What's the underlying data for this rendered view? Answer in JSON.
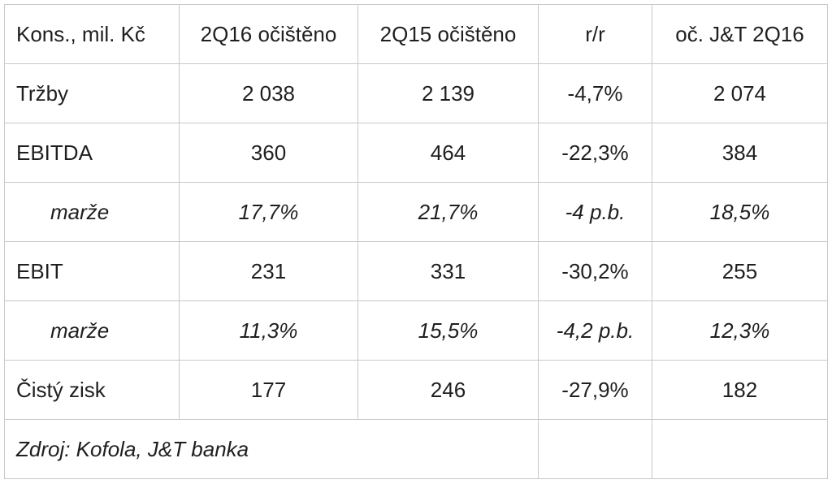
{
  "table": {
    "header": [
      "Kons., mil. Kč",
      "2Q16 očištěno",
      "2Q15 očištěno",
      "r/r",
      "oč. J&T 2Q16"
    ],
    "rows": [
      {
        "label": "Tržby",
        "cells": [
          "2 038",
          "2 139",
          "-4,7%",
          "2 074"
        ],
        "italic": false
      },
      {
        "label": "EBITDA",
        "cells": [
          "360",
          "464",
          "-22,3%",
          "384"
        ],
        "italic": false
      },
      {
        "label": "marže",
        "cells": [
          "17,7%",
          "21,7%",
          "-4 p.b.",
          "18,5%"
        ],
        "italic": true
      },
      {
        "label": "EBIT",
        "cells": [
          "231",
          "331",
          "-30,2%",
          "255"
        ],
        "italic": false
      },
      {
        "label": "marže",
        "cells": [
          "11,3%",
          "15,5%",
          "-4,2 p.b.",
          "12,3%"
        ],
        "italic": true
      },
      {
        "label": "Čistý zisk",
        "cells": [
          "177",
          "246",
          "-27,9%",
          "182"
        ],
        "italic": false
      }
    ],
    "source": "Zdroj: Kofola, J&T banka"
  }
}
